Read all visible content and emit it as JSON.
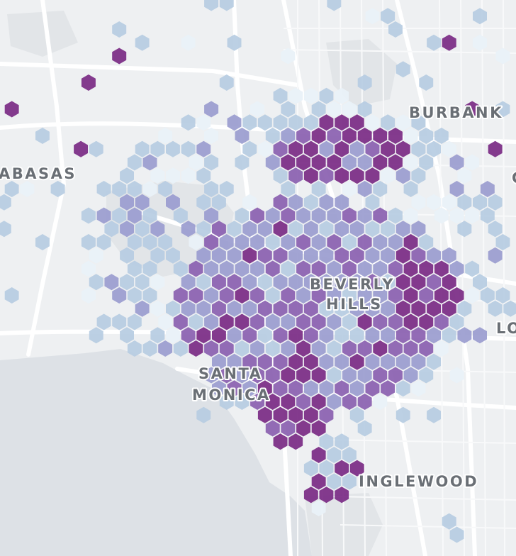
{
  "map": {
    "colors": {
      "land": "#eef0f2",
      "water": "#dde1e6",
      "major_road": "#ffffff",
      "minor_road": "#f8f9fa",
      "park": "#e2e5e8",
      "label": "#6a6f75",
      "hex_level_1": "#e9f1f8",
      "hex_level_2": "#b6cce2",
      "hex_level_3": "#9a9ccf",
      "hex_level_4": "#8a5fb0",
      "hex_level_5": "#7a2a84"
    },
    "labels": {
      "burbank": "BURBANK",
      "calabasas": "ABASAS",
      "beverly_hills_1": "BEVERLY",
      "beverly_hills_2": "HILLS",
      "santa_monica_1": "SANTA",
      "santa_monica_2": "MONICA",
      "inglewood": "INGLEWOOD",
      "los_angeles": "LO",
      "glendale": "G"
    },
    "hex_density_levels": [
      1,
      2,
      3,
      4,
      5
    ]
  }
}
